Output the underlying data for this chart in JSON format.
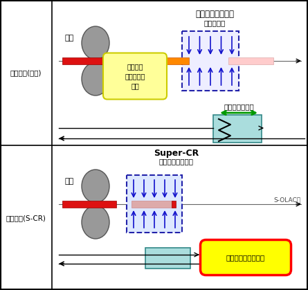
{
  "bg_color": "#ffffff",
  "top_label": "装置配置(従来)",
  "bottom_label": "装置配置(S-CR)",
  "top_title": "従来シャワー設備",
  "top_subtitle": "（低冷速）",
  "bottom_title": "Super-CR",
  "bottom_subtitle": "（均一超高冷速）",
  "mill_label": "ミル",
  "oscillation_label": "オシレーション",
  "solac_label": "S-OLACへ",
  "speech_top": "冷却中は\nミ空き時間\n発生",
  "speech_bottom": "冷却と圧延を同期化"
}
